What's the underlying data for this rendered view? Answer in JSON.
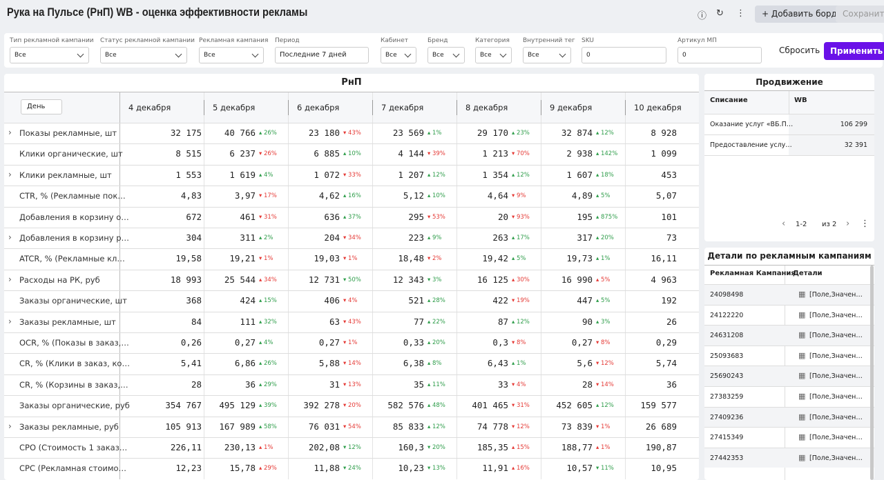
{
  "header": {
    "title": "Рука на Пульсе (РнП) WB - оценка эффективности рекламы",
    "add_board": "Добавить борд",
    "save": "Сохранить"
  },
  "filters": {
    "fields": [
      {
        "label": "Тип рекламной кампании",
        "value": "Все"
      },
      {
        "label": "Статус рекламной кампании",
        "value": "Все"
      },
      {
        "label": "Рекламная кампания",
        "value": "Все"
      },
      {
        "label": "Период",
        "value": "Последние 7 дней"
      },
      {
        "label": "Кабинет",
        "value": "Все"
      },
      {
        "label": "Бренд",
        "value": "Все"
      },
      {
        "label": "Категория",
        "value": "Все"
      },
      {
        "label": "Внутренний тег",
        "value": "Все"
      },
      {
        "label": "SKU",
        "value": "0"
      },
      {
        "label": "Артикул МП",
        "value": "0"
      }
    ],
    "reset": "Сбросить",
    "apply": "Применить"
  },
  "table": {
    "title": "РнП",
    "granularity": "День",
    "columns": [
      "4 декабря",
      "5 декабря",
      "6 декабря",
      "7 декабря",
      "8 декабря",
      "9 декабря",
      "10 декабря"
    ],
    "rows": [
      {
        "label": "Показы рекламные, шт",
        "expandable": true,
        "values": [
          "32 175",
          "40 766",
          "23 180",
          "23 569",
          "29 170",
          "32 874",
          "8 928"
        ],
        "changes": [
          null,
          "26%",
          "43%",
          "1%",
          "23%",
          "12%"
        ],
        "trends": [
          null,
          "up",
          "down",
          "up",
          "up",
          "up"
        ],
        "colors": [
          null,
          "green",
          "red",
          "green",
          "green",
          "green"
        ]
      },
      {
        "label": "Клики органические, шт",
        "expandable": false,
        "values": [
          "8 515",
          "6 237",
          "6 885",
          "4 144",
          "1 213",
          "2 938",
          "1 099"
        ],
        "changes": [
          null,
          "26%",
          "10%",
          "39%",
          "70%",
          "142%"
        ],
        "trends": [
          null,
          "down",
          "up",
          "down",
          "down",
          "up"
        ],
        "colors": [
          null,
          "red",
          "green",
          "red",
          "red",
          "green"
        ]
      },
      {
        "label": "Клики рекламные, шт",
        "expandable": true,
        "values": [
          "1 553",
          "1 619",
          "1 072",
          "1 207",
          "1 354",
          "1 607",
          "453"
        ],
        "changes": [
          null,
          "4%",
          "33%",
          "12%",
          "12%",
          "18%"
        ],
        "trends": [
          null,
          "up",
          "down",
          "up",
          "up",
          "up"
        ],
        "colors": [
          null,
          "green",
          "red",
          "green",
          "green",
          "green"
        ]
      },
      {
        "label": "CTR, % (Рекламные пок…",
        "expandable": false,
        "values": [
          "4,83",
          "3,97",
          "4,62",
          "5,12",
          "4,64",
          "4,89",
          "5,07"
        ],
        "changes": [
          null,
          "17%",
          "16%",
          "10%",
          "9%",
          "5%"
        ],
        "trends": [
          null,
          "down",
          "up",
          "up",
          "down",
          "up"
        ],
        "colors": [
          null,
          "red",
          "green",
          "green",
          "red",
          "green"
        ]
      },
      {
        "label": "Добавления в корзину о…",
        "expandable": false,
        "values": [
          "672",
          "461",
          "636",
          "295",
          "20",
          "195",
          "101"
        ],
        "changes": [
          null,
          "31%",
          "37%",
          "53%",
          "93%",
          "875%"
        ],
        "trends": [
          null,
          "down",
          "up",
          "down",
          "down",
          "up"
        ],
        "colors": [
          null,
          "red",
          "green",
          "red",
          "red",
          "green"
        ]
      },
      {
        "label": "Добавления в корзину р…",
        "expandable": true,
        "values": [
          "304",
          "311",
          "204",
          "223",
          "263",
          "317",
          "73"
        ],
        "changes": [
          null,
          "2%",
          "34%",
          "9%",
          "17%",
          "20%"
        ],
        "trends": [
          null,
          "up",
          "down",
          "up",
          "up",
          "up"
        ],
        "colors": [
          null,
          "green",
          "red",
          "green",
          "green",
          "green"
        ]
      },
      {
        "label": "ATCR, % (Рекламные кл…",
        "expandable": false,
        "values": [
          "19,58",
          "19,21",
          "19,03",
          "18,48",
          "19,42",
          "19,73",
          "16,11"
        ],
        "changes": [
          null,
          "1%",
          "1%",
          "2%",
          "5%",
          "1%"
        ],
        "trends": [
          null,
          "down",
          "down",
          "down",
          "up",
          "up"
        ],
        "colors": [
          null,
          "red",
          "red",
          "red",
          "green",
          "green"
        ]
      },
      {
        "label": "Расходы на РК, руб",
        "expandable": true,
        "values": [
          "18 993",
          "25 544",
          "12 731",
          "12 343",
          "16 125",
          "16 990",
          "4 963"
        ],
        "changes": [
          null,
          "34%",
          "50%",
          "3%",
          "30%",
          "5%"
        ],
        "trends": [
          null,
          "up",
          "down",
          "down",
          "up",
          "up"
        ],
        "colors": [
          null,
          "red",
          "green",
          "green",
          "red",
          "red"
        ]
      },
      {
        "label": "Заказы органические, шт",
        "expandable": false,
        "values": [
          "368",
          "424",
          "406",
          "521",
          "422",
          "447",
          "192"
        ],
        "changes": [
          null,
          "15%",
          "4%",
          "28%",
          "19%",
          "5%"
        ],
        "trends": [
          null,
          "up",
          "down",
          "up",
          "down",
          "up"
        ],
        "colors": [
          null,
          "green",
          "red",
          "green",
          "red",
          "green"
        ]
      },
      {
        "label": "Заказы рекламные, шт",
        "expandable": true,
        "values": [
          "84",
          "111",
          "63",
          "77",
          "87",
          "90",
          "26"
        ],
        "changes": [
          null,
          "32%",
          "43%",
          "22%",
          "12%",
          "3%"
        ],
        "trends": [
          null,
          "up",
          "down",
          "up",
          "up",
          "up"
        ],
        "colors": [
          null,
          "green",
          "red",
          "green",
          "green",
          "green"
        ]
      },
      {
        "label": "OCR, % (Показы в заказ,…",
        "expandable": false,
        "values": [
          "0,26",
          "0,27",
          "0,27",
          "0,33",
          "0,3",
          "0,27",
          "0,29"
        ],
        "changes": [
          null,
          "4%",
          "1%",
          "20%",
          "8%",
          "8%"
        ],
        "trends": [
          null,
          "up",
          "down",
          "up",
          "down",
          "down"
        ],
        "colors": [
          null,
          "green",
          "red",
          "green",
          "red",
          "red"
        ]
      },
      {
        "label": "CR, % (Клики в заказ, ко…",
        "expandable": false,
        "values": [
          "5,41",
          "6,86",
          "5,88",
          "6,38",
          "6,43",
          "5,6",
          "5,74"
        ],
        "changes": [
          null,
          "26%",
          "14%",
          "8%",
          "1%",
          "12%"
        ],
        "trends": [
          null,
          "up",
          "down",
          "up",
          "up",
          "down"
        ],
        "colors": [
          null,
          "green",
          "red",
          "green",
          "green",
          "red"
        ]
      },
      {
        "label": "CR, % (Корзины в заказ,…",
        "expandable": false,
        "values": [
          "28",
          "36",
          "31",
          "35",
          "33",
          "28",
          "36"
        ],
        "changes": [
          null,
          "29%",
          "13%",
          "11%",
          "4%",
          "14%"
        ],
        "trends": [
          null,
          "up",
          "down",
          "up",
          "down",
          "down"
        ],
        "colors": [
          null,
          "green",
          "red",
          "green",
          "red",
          "red"
        ]
      },
      {
        "label": "Заказы органические, руб",
        "expandable": false,
        "values": [
          "354 767",
          "495 129",
          "392 278",
          "582 576",
          "401 465",
          "452 605",
          "159 577"
        ],
        "changes": [
          null,
          "39%",
          "20%",
          "48%",
          "31%",
          "12%"
        ],
        "trends": [
          null,
          "up",
          "down",
          "up",
          "down",
          "up"
        ],
        "colors": [
          null,
          "green",
          "red",
          "green",
          "red",
          "green"
        ]
      },
      {
        "label": "Заказы рекламные, руб",
        "expandable": true,
        "values": [
          "105 913",
          "167 989",
          "76 031",
          "85 833",
          "74 778",
          "73 839",
          "26 689"
        ],
        "changes": [
          null,
          "58%",
          "54%",
          "12%",
          "12%",
          "1%"
        ],
        "trends": [
          null,
          "up",
          "down",
          "up",
          "down",
          "down"
        ],
        "colors": [
          null,
          "green",
          "red",
          "green",
          "red",
          "red"
        ]
      },
      {
        "label": "CPO (Стоимость 1 заказ…",
        "expandable": false,
        "values": [
          "226,11",
          "230,13",
          "202,08",
          "160,3",
          "185,35",
          "188,77",
          "190,87"
        ],
        "changes": [
          null,
          "1%",
          "12%",
          "20%",
          "15%",
          "1%"
        ],
        "trends": [
          null,
          "up",
          "down",
          "down",
          "up",
          "up"
        ],
        "colors": [
          null,
          "red",
          "green",
          "green",
          "red",
          "red"
        ]
      },
      {
        "label": "CPC (Рекламная стоимо…",
        "expandable": false,
        "values": [
          "12,23",
          "15,78",
          "11,88",
          "10,23",
          "11,91",
          "10,57",
          "10,95"
        ],
        "changes": [
          null,
          "29%",
          "24%",
          "13%",
          "16%",
          "11%"
        ],
        "trends": [
          null,
          "up",
          "down",
          "down",
          "up",
          "down"
        ],
        "colors": [
          null,
          "red",
          "green",
          "green",
          "red",
          "green"
        ]
      }
    ]
  },
  "promo": {
    "title": "Продвижение",
    "headers": [
      "Списание",
      "WB"
    ],
    "rows": [
      [
        "Оказание услуг «ВБ.П…",
        "106 299"
      ],
      [
        "Предоставление услу…",
        "32 391"
      ]
    ],
    "page": "1-2",
    "of": "из 2"
  },
  "details": {
    "title": "Детали по рекламным кампаниям",
    "headers": [
      "Рекламная Кампания",
      "Детали"
    ],
    "rows": [
      [
        "24098498",
        "[Поле,Значен…"
      ],
      [
        "24122220",
        "[Поле,Значен…"
      ],
      [
        "24631208",
        "[Поле,Значен…"
      ],
      [
        "25093683",
        "[Поле,Значен…"
      ],
      [
        "25690243",
        "[Поле,Значен…"
      ],
      [
        "27383259",
        "[Поле,Значен…"
      ],
      [
        "27409236",
        "[Поле,Значен…"
      ],
      [
        "27415349",
        "[Поле,Значен…"
      ],
      [
        "27442353",
        "[Поле,Значен…"
      ]
    ]
  }
}
